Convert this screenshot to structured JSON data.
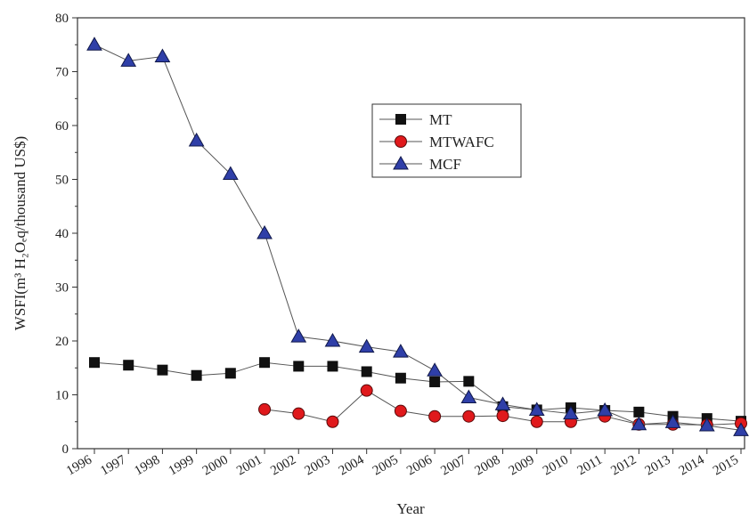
{
  "chart_data": {
    "type": "line",
    "xlabel": "Year",
    "ylabel": "WSFI(m³ H₂Oₑq/thousand US$)",
    "ylim": [
      0,
      80
    ],
    "yticks": [
      "0",
      "10",
      "20",
      "30",
      "40",
      "50",
      "60",
      "70",
      "80"
    ],
    "categories": [
      "1996",
      "1997",
      "1998",
      "1999",
      "2000",
      "2001",
      "2002",
      "2003",
      "2004",
      "2005",
      "2006",
      "2007",
      "2008",
      "2009",
      "2010",
      "2011",
      "2012",
      "2013",
      "2014",
      "2015"
    ],
    "legend_position": "upper-middle",
    "grid": false,
    "series": [
      {
        "name": "MT",
        "marker": "square",
        "color": "#111111",
        "values": [
          16.0,
          15.5,
          14.6,
          13.6,
          14.0,
          16.0,
          15.3,
          15.3,
          14.3,
          13.1,
          12.4,
          12.5,
          7.8,
          7.2,
          7.6,
          7.1,
          6.8,
          6.0,
          5.6,
          5.1
        ]
      },
      {
        "name": "MTWAFC",
        "marker": "circle",
        "color": "#e0191c",
        "values": [
          null,
          null,
          null,
          null,
          null,
          7.3,
          6.5,
          5.0,
          10.8,
          7.0,
          6.0,
          6.0,
          6.1,
          5.0,
          5.0,
          6.0,
          4.5,
          4.5,
          4.4,
          4.7
        ]
      },
      {
        "name": "MCF",
        "marker": "triangle",
        "color": "#2f3fa8",
        "values": [
          75.0,
          72.0,
          72.8,
          57.2,
          51.0,
          40.0,
          20.8,
          20.0,
          18.9,
          18.0,
          14.5,
          9.5,
          8.2,
          7.2,
          6.5,
          7.1,
          4.5,
          4.9,
          4.3,
          3.4
        ]
      }
    ]
  }
}
